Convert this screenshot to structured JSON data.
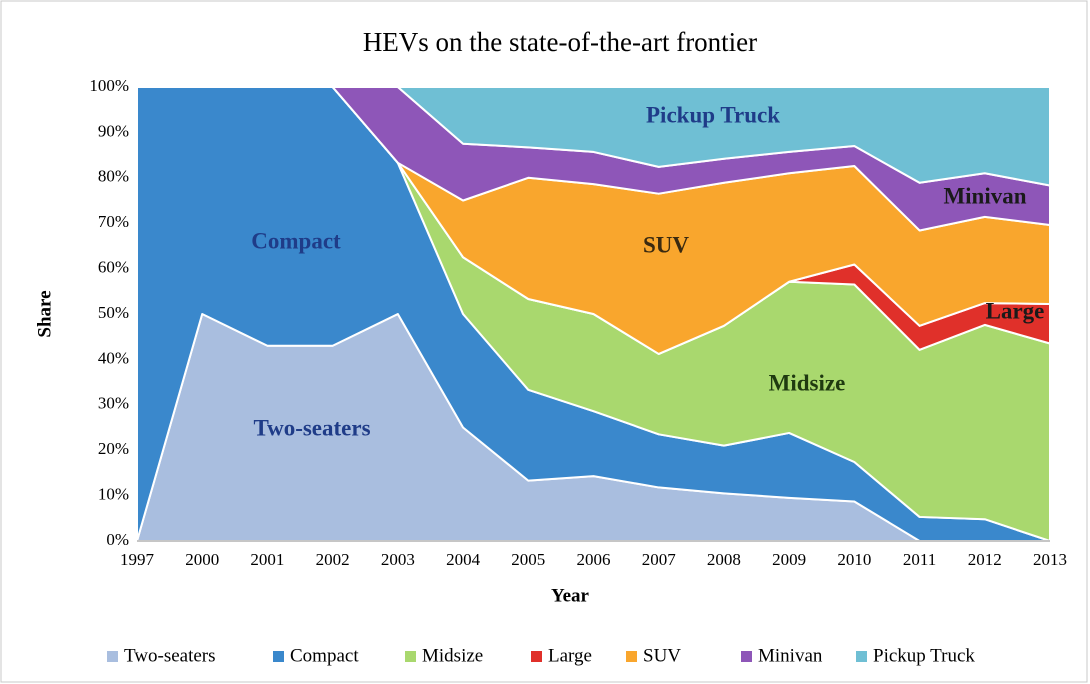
{
  "chart_data": {
    "type": "stacked-area",
    "title": "HEVs on the state-of-the-art frontier",
    "xlabel": "Year",
    "ylabel": "Share",
    "categories": [
      "1997",
      "2000",
      "2001",
      "2002",
      "2003",
      "2004",
      "2005",
      "2006",
      "2007",
      "2008",
      "2009",
      "2010",
      "2011",
      "2012",
      "2013"
    ],
    "series": [
      {
        "name": "Two-seaters",
        "color": "#a9bedf",
        "values": [
          0,
          50,
          43,
          43,
          50,
          25,
          13.3,
          14.3,
          11.8,
          10.5,
          9.5,
          8.7,
          0,
          0,
          0
        ]
      },
      {
        "name": "Compact",
        "color": "#3a88cc",
        "values": [
          100,
          50,
          57,
          57,
          33.3,
          25,
          20,
          14.3,
          11.7,
          10.5,
          14.3,
          8.7,
          5.3,
          4.8,
          0
        ]
      },
      {
        "name": "Midsize",
        "color": "#a9d86e",
        "values": [
          0,
          0,
          0,
          0,
          0,
          12.5,
          20,
          21.4,
          17.7,
          26.4,
          33.3,
          39.1,
          36.8,
          42.8,
          43.5
        ]
      },
      {
        "name": "Large",
        "color": "#e0302a",
        "values": [
          0,
          0,
          0,
          0,
          0,
          0,
          0,
          0,
          0,
          0,
          0,
          4.4,
          5.3,
          4.8,
          8.7
        ]
      },
      {
        "name": "SUV",
        "color": "#f9a62d",
        "values": [
          0,
          0,
          0,
          0,
          0,
          12.5,
          26.7,
          28.6,
          35.3,
          31.5,
          23.9,
          21.7,
          21,
          19,
          17.4
        ]
      },
      {
        "name": "Minivan",
        "color": "#8e56b8",
        "values": [
          0,
          0,
          0,
          0,
          16.7,
          12.5,
          6.7,
          7.1,
          5.9,
          5.3,
          4.7,
          4.4,
          10.5,
          9.6,
          8.7
        ]
      },
      {
        "name": "Pickup Truck",
        "color": "#6fbfd4",
        "values": [
          0,
          0,
          0,
          0,
          0,
          12.5,
          13.3,
          14.3,
          17.6,
          15.8,
          14.3,
          13,
          21.1,
          19,
          21.7
        ]
      }
    ],
    "annotations": [
      "Pickup Truck",
      "Compact",
      "SUV",
      "Minivan",
      "Large",
      "Midsize",
      "Two-seaters"
    ],
    "ylim": [
      0,
      100
    ],
    "yticks": [
      {
        "value": 0,
        "label": "0%"
      },
      {
        "value": 10,
        "label": "10%"
      },
      {
        "value": 20,
        "label": "20%"
      },
      {
        "value": 30,
        "label": "30%"
      },
      {
        "value": 40,
        "label": "40%"
      },
      {
        "value": 50,
        "label": "50%"
      },
      {
        "value": 60,
        "label": "60%"
      },
      {
        "value": 70,
        "label": "70%"
      },
      {
        "value": 80,
        "label": "80%"
      },
      {
        "value": 90,
        "label": "90%"
      },
      {
        "value": 100,
        "label": "100%"
      }
    ],
    "grid": true,
    "legend": "bottom"
  }
}
